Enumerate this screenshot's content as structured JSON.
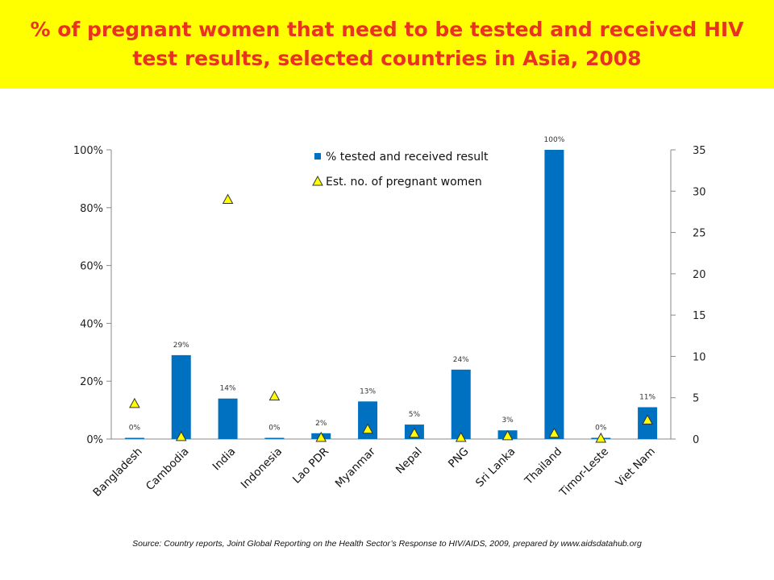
{
  "title": "% of pregnant women that need to be tested and received HIV test results, selected countries in Asia, 2008",
  "source": "Source: Country reports, Joint Global Reporting on the Health Sector’s Response to HIV/AIDS, 2009, prepared by www.aidsdatahub.org",
  "colors": {
    "banner": "#ffff00",
    "title": "#e8331f",
    "bar": "#0070c0",
    "marker": "#ffff00"
  },
  "chart_data": {
    "type": "bar",
    "categories": [
      "Bangladesh",
      "Cambodia",
      "India",
      "Indonesia",
      "Lao PDR",
      "Myanmar",
      "Nepal",
      "PNG",
      "Sri Lanka",
      "Thailand",
      "Timor-Leste",
      "Viet Nam"
    ],
    "series": [
      {
        "name": "% tested and received result",
        "type": "bar",
        "axis": "left",
        "values": [
          0,
          29,
          14,
          0,
          2,
          13,
          5,
          24,
          3,
          100,
          0,
          11
        ],
        "data_labels": [
          "0%",
          "29%",
          "14%",
          "0%",
          "2%",
          "13%",
          "5%",
          "24%",
          "3%",
          "100%",
          "0%",
          "11%"
        ]
      },
      {
        "name": "Est. no. of pregnant women",
        "type": "scatter",
        "marker": "triangle",
        "axis": "right",
        "values": [
          4.3,
          0.3,
          29,
          5.2,
          0.2,
          1.2,
          0.7,
          0.2,
          0.4,
          0.7,
          0.1,
          2.3
        ]
      }
    ],
    "y_left": {
      "ylim": [
        0,
        100
      ],
      "ticks": [
        "0%",
        "20%",
        "40%",
        "60%",
        "80%",
        "100%"
      ]
    },
    "y_right": {
      "ylim": [
        0,
        35
      ],
      "ticks": [
        "0",
        "5",
        "10",
        "15",
        "20",
        "25",
        "30",
        "35"
      ]
    },
    "grid": false,
    "legend_position": "top-center"
  }
}
